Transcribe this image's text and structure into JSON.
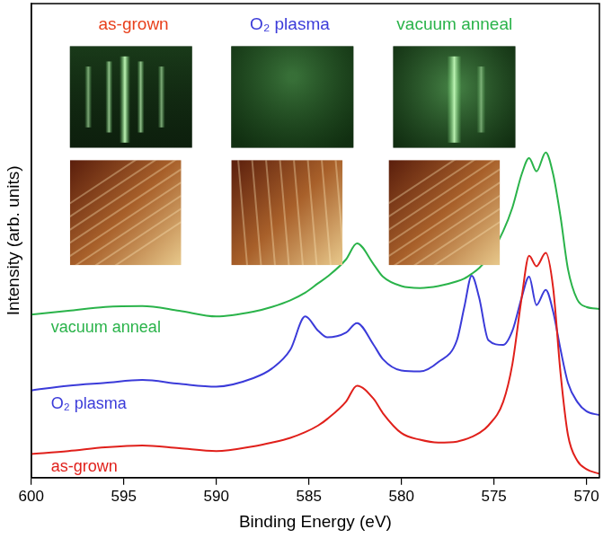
{
  "chart_data": {
    "type": "line",
    "x_label": "Binding Energy (eV)",
    "y_label": "Intensity (arb. units)",
    "x": [
      600,
      598,
      596,
      594,
      592,
      590,
      588,
      587,
      586,
      585.2,
      584.5,
      584,
      583,
      582.4,
      581.5,
      581,
      580,
      579,
      578,
      577,
      576.6,
      576.2,
      575.8,
      575.3,
      574.5,
      574,
      573.5,
      573.1,
      572.7,
      572.2,
      571.8,
      571.4,
      571,
      570.5,
      570,
      569.3
    ],
    "series": [
      {
        "name": "as-grown",
        "color": "#e0201b",
        "values": [
          5,
          5.6,
          6.4,
          6.8,
          6.2,
          5.6,
          6.6,
          7.4,
          8.4,
          9.6,
          11,
          12.4,
          16,
          19.4,
          16.6,
          13.6,
          9.4,
          8,
          7.4,
          7.6,
          8,
          8.6,
          9.4,
          11,
          16,
          24,
          38,
          46.8,
          44.6,
          47.4,
          40,
          22,
          9,
          3.6,
          1.8,
          0.8
        ]
      },
      {
        "name": "O₂ plasma",
        "color": "#3b3bd9",
        "values": [
          18.4,
          19.4,
          20,
          20.6,
          19.8,
          19.2,
          21,
          23,
          27,
          34,
          31,
          29.6,
          30.6,
          32.6,
          28,
          25,
          22.6,
          22.4,
          24.4,
          29,
          36,
          42.6,
          38,
          29,
          28,
          31,
          38,
          42.4,
          36.4,
          39.6,
          35,
          27,
          20,
          16,
          14,
          13.2
        ]
      },
      {
        "name": "vacuum anneal",
        "color": "#2ab34a",
        "values": [
          34.4,
          35.2,
          36,
          36.2,
          35.2,
          34,
          35,
          36,
          37.4,
          39,
          41,
          42.4,
          46,
          49.4,
          45,
          42.4,
          40.4,
          40,
          40.4,
          41.4,
          42,
          43,
          44.2,
          46.4,
          52,
          57,
          64,
          67.4,
          64.6,
          68.6,
          64,
          55,
          44,
          37.6,
          36,
          35.6
        ]
      }
    ],
    "xlim": [
      600,
      569.3
    ],
    "xticks": [
      600,
      595,
      590,
      585,
      580,
      575,
      570
    ],
    "ylim": [
      0,
      100
    ],
    "grid": false,
    "tick_labels": "x",
    "annotations": [
      {
        "text": "as-grown",
        "color": "#e8401c"
      },
      {
        "text": "O₂ plasma",
        "color": "#3b3bd9"
      },
      {
        "text": "vacuum anneal",
        "color": "#2ab34a"
      }
    ]
  }
}
